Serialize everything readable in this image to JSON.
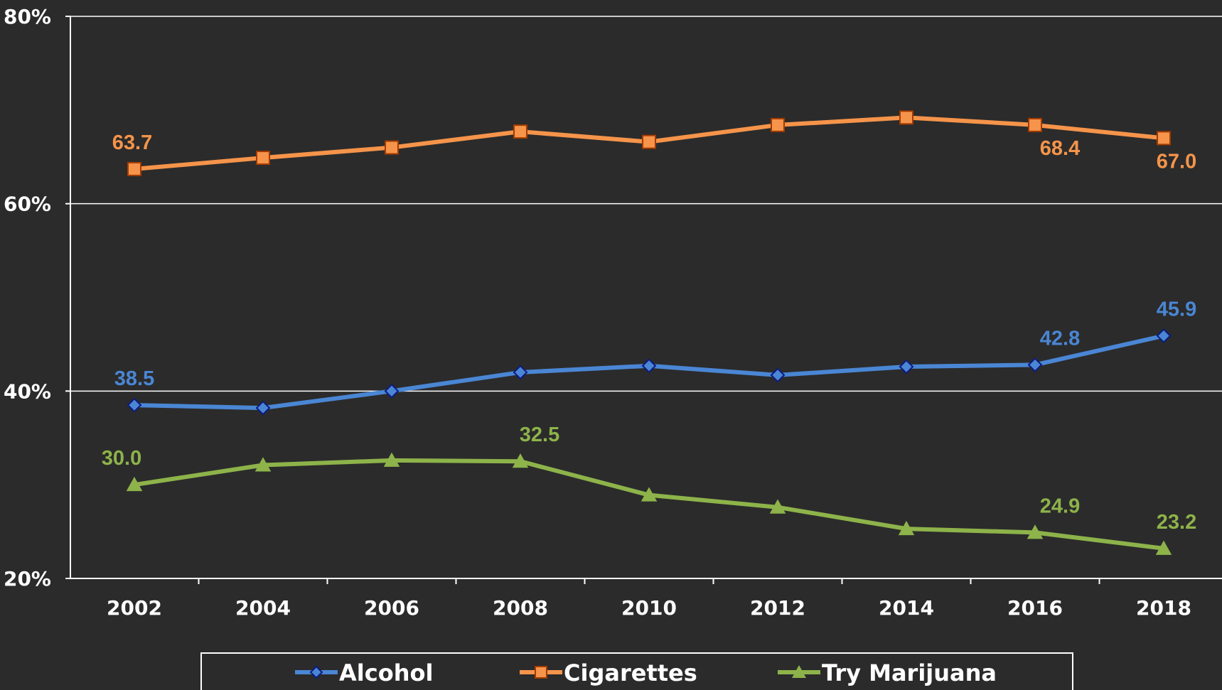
{
  "chart_data": {
    "type": "line",
    "title": "",
    "xlabel": "",
    "ylabel": "",
    "categories": [
      "2002",
      "2004",
      "2006",
      "2008",
      "2010",
      "2012",
      "2014",
      "2016",
      "2018"
    ],
    "ylim": [
      20,
      80
    ],
    "yticks": [
      "20%",
      "40%",
      "60%",
      "80%"
    ],
    "ytick_values": [
      20,
      40,
      60,
      80
    ],
    "grid": true,
    "legend_position": "bottom",
    "series": [
      {
        "name": "Alcohol",
        "color": "#4a86d4",
        "marker": "diamond",
        "values": [
          38.5,
          38.2,
          40.0,
          42.0,
          42.7,
          41.7,
          42.6,
          42.8,
          45.9
        ],
        "labels": [
          {
            "index": 0,
            "text": "38.5",
            "position": "above"
          },
          {
            "index": 7,
            "text": "42.8",
            "position": "above"
          },
          {
            "index": 8,
            "text": "45.9",
            "position": "above"
          }
        ]
      },
      {
        "name": "Cigarettes",
        "color": "#f5944a",
        "marker": "square",
        "values": [
          63.7,
          64.9,
          66.0,
          67.7,
          66.6,
          68.4,
          69.2,
          68.4,
          67.0
        ],
        "labels": [
          {
            "index": 0,
            "text": "63.7",
            "position": "above"
          },
          {
            "index": 7,
            "text": "68.4",
            "position": "below"
          },
          {
            "index": 8,
            "text": "67.0",
            "position": "below"
          }
        ]
      },
      {
        "name": "Try Marijuana",
        "color": "#8db34a",
        "marker": "triangle",
        "values": [
          30.0,
          32.1,
          32.6,
          32.5,
          28.9,
          27.6,
          25.3,
          24.9,
          23.2
        ],
        "labels": [
          {
            "index": 0,
            "text": "30.0",
            "position": "above"
          },
          {
            "index": 3,
            "text": "32.5",
            "position": "above"
          },
          {
            "index": 7,
            "text": "24.9",
            "position": "above"
          },
          {
            "index": 8,
            "text": "23.2",
            "position": "above"
          }
        ]
      }
    ]
  }
}
